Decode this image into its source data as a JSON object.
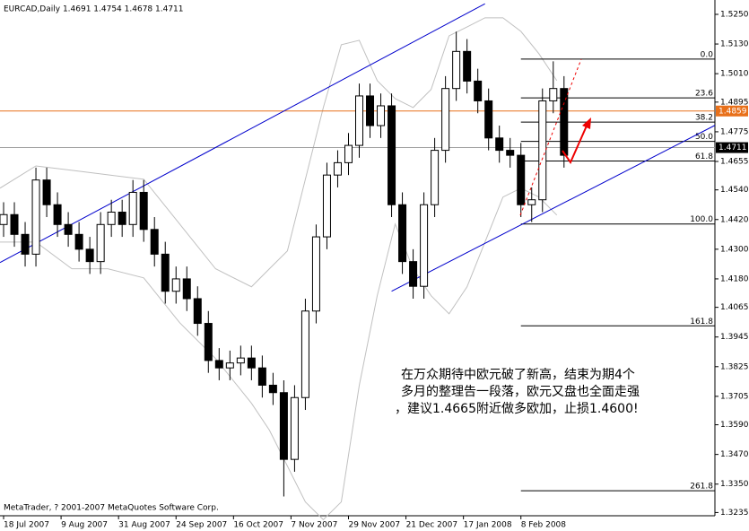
{
  "chart_data": {
    "type": "candlestick",
    "title": "EURCAD,Daily  1.4691 1.4754 1.4678 1.4711",
    "footer": "MetaTrader, ? 2001-2007 MetaQuotes Software Corp.",
    "annotation": [
      "在万众期待中欧元破了新高，结束为期4个",
      "多月的整理告一段落，欧元又盘也全面走强",
      "，建议1.4665附近做多欧加，止损1.4600!"
    ],
    "xlim": [
      -1,
      198
    ],
    "ylim": [
      1.3222,
      1.5308
    ],
    "xticks": [
      {
        "value": 0,
        "label": "18 Jul 2007"
      },
      {
        "value": 16,
        "label": "9 Aug 2007"
      },
      {
        "value": 32,
        "label": "31 Aug 2007"
      },
      {
        "value": 48,
        "label": "24 Sep 2007"
      },
      {
        "value": 64,
        "label": "16 Oct 2007"
      },
      {
        "value": 80,
        "label": "7 Nov 2007"
      },
      {
        "value": 96,
        "label": "29 Nov 2007"
      },
      {
        "value": 112,
        "label": "21 Dec 2007"
      },
      {
        "value": 128,
        "label": "17 Jan 2008"
      },
      {
        "value": 144,
        "label": "8 Feb 2008"
      }
    ],
    "yticks": [
      {
        "value": 1.525,
        "label": "1.5250"
      },
      {
        "value": 1.513,
        "label": "1.5130"
      },
      {
        "value": 1.501,
        "label": "1.5010"
      },
      1.4895,
      1.4775,
      1.4655,
      {
        "value": 1.454,
        "label": "1.4540"
      },
      {
        "value": 1.442,
        "label": "1.4420"
      },
      {
        "value": 1.43,
        "label": "1.4300"
      },
      {
        "value": 1.418,
        "label": "1.4180"
      },
      1.4065,
      1.3945,
      1.3825,
      1.3705,
      {
        "value": 1.359,
        "label": "1.3590"
      },
      {
        "value": 1.347,
        "label": "1.3470"
      },
      {
        "value": 1.335,
        "label": "1.3350"
      },
      1.3235
    ],
    "x": [
      0,
      3,
      6,
      9,
      12,
      15,
      18,
      21,
      24,
      27,
      30,
      33,
      36,
      39,
      42,
      45,
      48,
      51,
      54,
      57,
      60,
      63,
      66,
      69,
      72,
      75,
      78,
      81,
      84,
      87,
      90,
      93,
      96,
      99,
      102,
      105,
      108,
      111,
      114,
      117,
      120,
      123,
      126,
      129,
      132,
      135,
      138,
      141,
      144,
      147,
      150,
      153,
      156
    ],
    "open": [
      1.44,
      1.444,
      1.436,
      1.428,
      1.458,
      1.448,
      1.44,
      1.436,
      1.43,
      1.425,
      1.44,
      1.445,
      1.44,
      1.453,
      1.438,
      1.428,
      1.413,
      1.418,
      1.41,
      1.4,
      1.385,
      1.382,
      1.384,
      1.386,
      1.382,
      1.375,
      1.372,
      1.345,
      1.37,
      1.405,
      1.435,
      1.46,
      1.465,
      1.472,
      1.492,
      1.48,
      1.488,
      1.448,
      1.425,
      1.415,
      1.448,
      1.47,
      1.495,
      1.51,
      1.498,
      1.49,
      1.475,
      1.47,
      1.468,
      1.448,
      1.45,
      1.49,
      1.495
    ],
    "high": [
      1.449,
      1.449,
      1.441,
      1.463,
      1.463,
      1.453,
      1.445,
      1.441,
      1.435,
      1.445,
      1.45,
      1.45,
      1.458,
      1.458,
      1.443,
      1.433,
      1.423,
      1.423,
      1.415,
      1.405,
      1.39,
      1.389,
      1.391,
      1.391,
      1.387,
      1.38,
      1.377,
      1.375,
      1.41,
      1.44,
      1.465,
      1.47,
      1.477,
      1.497,
      1.497,
      1.493,
      1.493,
      1.453,
      1.43,
      1.453,
      1.475,
      1.5,
      1.518,
      1.515,
      1.503,
      1.495,
      1.48,
      1.475,
      1.473,
      1.455,
      1.495,
      1.506,
      1.5
    ],
    "low": [
      1.435,
      1.431,
      1.423,
      1.423,
      1.443,
      1.435,
      1.431,
      1.425,
      1.42,
      1.42,
      1.435,
      1.435,
      1.435,
      1.433,
      1.423,
      1.408,
      1.408,
      1.405,
      1.395,
      1.38,
      1.377,
      1.377,
      1.379,
      1.377,
      1.37,
      1.367,
      1.33,
      1.34,
      1.365,
      1.4,
      1.43,
      1.455,
      1.46,
      1.467,
      1.475,
      1.475,
      1.443,
      1.42,
      1.41,
      1.41,
      1.443,
      1.465,
      1.49,
      1.493,
      1.485,
      1.47,
      1.465,
      1.463,
      1.443,
      1.441,
      1.445,
      1.485,
      1.463
    ],
    "close": [
      1.444,
      1.436,
      1.428,
      1.458,
      1.448,
      1.44,
      1.436,
      1.43,
      1.425,
      1.44,
      1.445,
      1.44,
      1.453,
      1.438,
      1.428,
      1.413,
      1.418,
      1.41,
      1.4,
      1.385,
      1.382,
      1.384,
      1.386,
      1.382,
      1.375,
      1.372,
      1.345,
      1.37,
      1.405,
      1.435,
      1.46,
      1.465,
      1.472,
      1.492,
      1.48,
      1.488,
      1.448,
      1.425,
      1.415,
      1.448,
      1.47,
      1.495,
      1.51,
      1.498,
      1.49,
      1.475,
      1.47,
      1.468,
      1.448,
      1.45,
      1.49,
      1.495,
      1.468
    ],
    "bands": {
      "color": "#c0c0c0",
      "x": [
        -1,
        9,
        19,
        29,
        39,
        49,
        59,
        69,
        74,
        79,
        84,
        89,
        94,
        99,
        104,
        109,
        114,
        119,
        124,
        129,
        134,
        139,
        144,
        149,
        154
      ],
      "upper": [
        1.4547,
        1.4637,
        1.4619,
        1.4601,
        1.4583,
        1.4402,
        1.4221,
        1.4148,
        1.4221,
        1.4293,
        1.4583,
        1.4873,
        1.5127,
        1.5145,
        1.4982,
        1.4909,
        1.4873,
        1.4946,
        1.5163,
        1.5199,
        1.5236,
        1.5236,
        1.5181,
        1.5091,
        1.4982
      ],
      "lower": [
        1.4329,
        1.4329,
        1.4221,
        1.4221,
        1.4184,
        1.4003,
        1.3858,
        1.3677,
        1.3568,
        1.3423,
        1.3278,
        1.3206,
        1.3278,
        1.3749,
        1.4112,
        1.4402,
        1.4221,
        1.4112,
        1.4039,
        1.4148,
        1.4329,
        1.4511,
        1.4547,
        1.4511,
        1.4438
      ]
    },
    "trendlines": [
      {
        "color": "#0000cc",
        "x": [
          -1,
          134
        ],
        "y": [
          1.4246,
          1.5293
        ]
      },
      {
        "color": "#0000cc",
        "x": [
          108,
          198
        ],
        "y": [
          1.413,
          1.4801
        ]
      }
    ],
    "hlines": [
      {
        "price": 1.4859,
        "color": "#e8701a",
        "label": "1.4859"
      },
      {
        "price": 1.4711,
        "color": "#a0a0a0",
        "label": "1.4711"
      }
    ],
    "fibo": {
      "x_start": 144,
      "levels": [
        {
          "label": "0.0",
          "price": 1.5069
        },
        {
          "label": "23.6",
          "price": 1.4912
        },
        {
          "label": "38.2",
          "price": 1.4814
        },
        {
          "label": "50.0",
          "price": 1.4736
        },
        {
          "label": "61.8",
          "price": 1.4657
        },
        {
          "label": "100.0",
          "price": 1.4402
        },
        {
          "label": "161.8",
          "price": 1.399
        },
        {
          "label": "261.8",
          "price": 1.3323
        }
      ]
    }
  }
}
